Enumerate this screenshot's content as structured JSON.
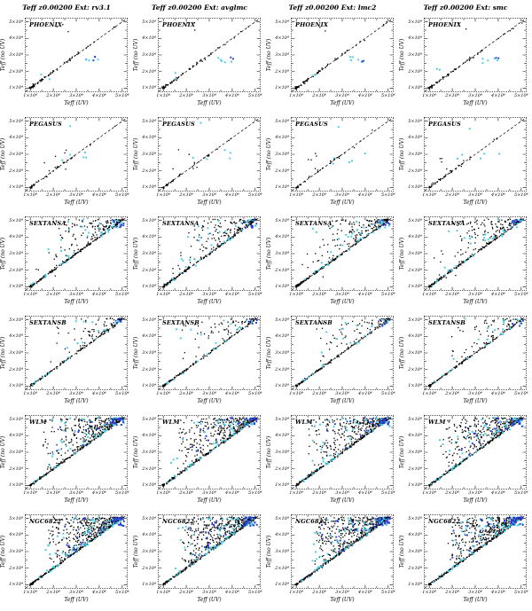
{
  "figure": {
    "column_titles": [
      "Teff z0.00200 Ext: rv3.1",
      "Teff z0.00200 Ext: avglmc",
      "Teff z0.00200 Ext: lmc2",
      "Teff z0.00200 Ext: smc"
    ],
    "row_labels": [
      "PHOENIX",
      "PEGASUS",
      "SEXTANSA",
      "SEXTANSB",
      "WLM",
      "NGC6822"
    ]
  },
  "chart_data": {
    "type": "scatter",
    "layout": {
      "rows": 6,
      "cols": 4,
      "legend": "none",
      "grid_lines": "off"
    },
    "xlabel": "Teff (UV)",
    "ylabel": "Teff (no UV)",
    "xlim": [
      8000,
      52000
    ],
    "ylim": [
      8000,
      52000
    ],
    "tick_values_kelvin": [
      10000,
      20000,
      30000,
      40000,
      50000
    ],
    "tick_labels": [
      "1×10⁴",
      "2×10⁴",
      "3×10⁴",
      "4×10⁴",
      "5×10⁴"
    ],
    "reference_line": {
      "type": "one-to-one diagonal",
      "dash": true,
      "color": "#000000"
    },
    "colors": {
      "black": "#000000",
      "cyan": "#3fcde8",
      "blue": "#2a3bd0"
    },
    "units_note": "point model values in units of 10^4 K",
    "row_point_model": {
      "PHOENIX": [
        {
          "kind": "diag",
          "n": 55,
          "min": 1.0,
          "max": 3.3,
          "pow": 2.0,
          "jitter": 0.05,
          "color": "black"
        },
        {
          "kind": "diag",
          "n": 6,
          "min": 3.4,
          "max": 5.0,
          "pow": 1.0,
          "jitter": 0.04,
          "color": "black"
        },
        {
          "kind": "box",
          "n": 3,
          "x": [
            1.9,
            2.7
          ],
          "y": [
            4.4,
            5.0
          ],
          "color": "black"
        },
        {
          "kind": "box",
          "n": 5,
          "x": [
            3.3,
            4.0
          ],
          "y": [
            2.5,
            2.9
          ],
          "color": "cyan"
        },
        {
          "kind": "box",
          "n": 2,
          "x": [
            3.7,
            4.05
          ],
          "y": [
            2.6,
            2.95
          ],
          "color": "blue"
        },
        {
          "kind": "box",
          "n": 2,
          "x": [
            1.3,
            1.9
          ],
          "y": [
            1.5,
            2.2
          ],
          "color": "cyan"
        }
      ],
      "PEGASUS": [
        {
          "kind": "diag",
          "n": 32,
          "min": 1.0,
          "max": 3.1,
          "pow": 1.8,
          "jitter": 0.05,
          "color": "black"
        },
        {
          "kind": "box",
          "n": 6,
          "x": [
            1.4,
            2.6
          ],
          "y": [
            1.9,
            3.3
          ],
          "color": "black"
        },
        {
          "kind": "diag",
          "n": 3,
          "min": 3.3,
          "max": 4.9,
          "pow": 1.0,
          "jitter": 0.06,
          "color": "black"
        },
        {
          "kind": "box",
          "n": 3,
          "x": [
            3.0,
            4.3
          ],
          "y": [
            2.5,
            3.3
          ],
          "color": "cyan"
        },
        {
          "kind": "box",
          "n": 2,
          "x": [
            2.2,
            2.9
          ],
          "y": [
            2.2,
            3.0
          ],
          "color": "cyan"
        },
        {
          "kind": "box",
          "n": 1,
          "x": [
            2.6,
            3.0
          ],
          "y": [
            4.5,
            5.0
          ],
          "color": "cyan"
        }
      ],
      "SEXTANSA": [
        {
          "kind": "diag",
          "n": 150,
          "min": 1.0,
          "max": 5.0,
          "pow": 1.6,
          "jitter": 0.04,
          "color": "black"
        },
        {
          "kind": "cloud",
          "n": 140,
          "x": [
            2.0,
            5.05
          ],
          "xbias": 0.7,
          "pow": 1.0,
          "color": "black"
        },
        {
          "kind": "cloud",
          "n": 22,
          "x": [
            1.5,
            5.0
          ],
          "xbias": 0.8,
          "pow": 1.0,
          "color": "cyan"
        },
        {
          "kind": "diag",
          "n": 14,
          "min": 1.1,
          "max": 4.6,
          "pow": 1.3,
          "jitter": 0.06,
          "color": "cyan"
        },
        {
          "kind": "box",
          "n": 8,
          "x": [
            1.2,
            2.2
          ],
          "y": [
            1.5,
            3.2
          ],
          "color": "black"
        },
        {
          "kind": "box",
          "n": 9,
          "x": [
            4.55,
            5.08
          ],
          "y": [
            4.55,
            5.08
          ],
          "color": "blue"
        },
        {
          "kind": "box",
          "n": 6,
          "x": [
            4.55,
            5.08
          ],
          "y": [
            4.55,
            5.08
          ],
          "color": "cyan"
        }
      ],
      "SEXTANSB": [
        {
          "kind": "diag",
          "n": 110,
          "min": 1.0,
          "max": 5.0,
          "pow": 1.7,
          "jitter": 0.04,
          "color": "black"
        },
        {
          "kind": "cloud",
          "n": 70,
          "x": [
            1.8,
            5.05
          ],
          "xbias": 0.75,
          "pow": 1.0,
          "color": "black"
        },
        {
          "kind": "cloud",
          "n": 10,
          "x": [
            1.5,
            4.8
          ],
          "xbias": 0.8,
          "pow": 1.0,
          "color": "cyan"
        },
        {
          "kind": "diag",
          "n": 10,
          "min": 1.1,
          "max": 4.5,
          "pow": 1.3,
          "jitter": 0.06,
          "color": "cyan"
        },
        {
          "kind": "box",
          "n": 5,
          "x": [
            4.6,
            5.08
          ],
          "y": [
            4.6,
            5.08
          ],
          "color": "blue"
        },
        {
          "kind": "box",
          "n": 3,
          "x": [
            4.6,
            5.08
          ],
          "y": [
            4.6,
            5.08
          ],
          "color": "cyan"
        }
      ],
      "WLM": [
        {
          "kind": "diag",
          "n": 160,
          "min": 1.0,
          "max": 5.0,
          "pow": 1.5,
          "jitter": 0.04,
          "color": "black"
        },
        {
          "kind": "cloud",
          "n": 300,
          "x": [
            1.5,
            5.05
          ],
          "xbias": 0.75,
          "pow": 0.95,
          "color": "black"
        },
        {
          "kind": "cloud",
          "n": 35,
          "x": [
            1.3,
            5.0
          ],
          "xbias": 0.8,
          "pow": 0.95,
          "color": "cyan"
        },
        {
          "kind": "diag",
          "n": 20,
          "min": 1.1,
          "max": 4.8,
          "pow": 1.3,
          "jitter": 0.06,
          "color": "cyan"
        },
        {
          "kind": "cloud",
          "n": 18,
          "x": [
            2.0,
            5.0
          ],
          "xbias": 0.75,
          "pow": 0.95,
          "color": "blue"
        },
        {
          "kind": "box",
          "n": 14,
          "x": [
            4.55,
            5.08
          ],
          "y": [
            4.55,
            5.08
          ],
          "color": "blue"
        },
        {
          "kind": "box",
          "n": 8,
          "x": [
            4.55,
            5.08
          ],
          "y": [
            4.55,
            5.08
          ],
          "color": "cyan"
        }
      ],
      "NGC6822": [
        {
          "kind": "diag",
          "n": 170,
          "min": 1.0,
          "max": 5.0,
          "pow": 1.4,
          "jitter": 0.04,
          "color": "black"
        },
        {
          "kind": "cloud",
          "n": 400,
          "x": [
            1.8,
            5.05
          ],
          "xbias": 0.8,
          "pow": 1.1,
          "color": "black"
        },
        {
          "kind": "cloud",
          "n": 45,
          "x": [
            1.5,
            5.0
          ],
          "xbias": 0.8,
          "pow": 1.0,
          "color": "cyan"
        },
        {
          "kind": "diag",
          "n": 25,
          "min": 1.2,
          "max": 4.8,
          "pow": 1.2,
          "jitter": 0.06,
          "color": "cyan"
        },
        {
          "kind": "cloud",
          "n": 25,
          "x": [
            2.0,
            5.0
          ],
          "xbias": 0.8,
          "pow": 1.0,
          "color": "blue"
        },
        {
          "kind": "box",
          "n": 18,
          "x": [
            4.55,
            5.08
          ],
          "y": [
            4.55,
            5.08
          ],
          "color": "blue"
        },
        {
          "kind": "box",
          "n": 10,
          "x": [
            4.55,
            5.08
          ],
          "y": [
            4.55,
            5.08
          ],
          "color": "cyan"
        }
      ]
    },
    "panels": [
      {
        "row": "PHOENIX",
        "col": 0,
        "seed": 101
      },
      {
        "row": "PHOENIX",
        "col": 1,
        "seed": 102
      },
      {
        "row": "PHOENIX",
        "col": 2,
        "seed": 103
      },
      {
        "row": "PHOENIX",
        "col": 3,
        "seed": 104
      },
      {
        "row": "PEGASUS",
        "col": 0,
        "seed": 105
      },
      {
        "row": "PEGASUS",
        "col": 1,
        "seed": 106
      },
      {
        "row": "PEGASUS",
        "col": 2,
        "seed": 107
      },
      {
        "row": "PEGASUS",
        "col": 3,
        "seed": 108
      },
      {
        "row": "SEXTANSA",
        "col": 0,
        "seed": 109
      },
      {
        "row": "SEXTANSA",
        "col": 1,
        "seed": 110
      },
      {
        "row": "SEXTANSA",
        "col": 2,
        "seed": 111
      },
      {
        "row": "SEXTANSA",
        "col": 3,
        "seed": 112
      },
      {
        "row": "SEXTANSB",
        "col": 0,
        "seed": 113
      },
      {
        "row": "SEXTANSB",
        "col": 1,
        "seed": 114
      },
      {
        "row": "SEXTANSB",
        "col": 2,
        "seed": 115
      },
      {
        "row": "SEXTANSB",
        "col": 3,
        "seed": 116
      },
      {
        "row": "WLM",
        "col": 0,
        "seed": 117
      },
      {
        "row": "WLM",
        "col": 1,
        "seed": 118
      },
      {
        "row": "WLM",
        "col": 2,
        "seed": 119
      },
      {
        "row": "WLM",
        "col": 3,
        "seed": 120
      },
      {
        "row": "NGC6822",
        "col": 0,
        "seed": 121
      },
      {
        "row": "NGC6822",
        "col": 1,
        "seed": 122
      },
      {
        "row": "NGC6822",
        "col": 2,
        "seed": 123
      },
      {
        "row": "NGC6822",
        "col": 3,
        "seed": 124
      }
    ]
  }
}
